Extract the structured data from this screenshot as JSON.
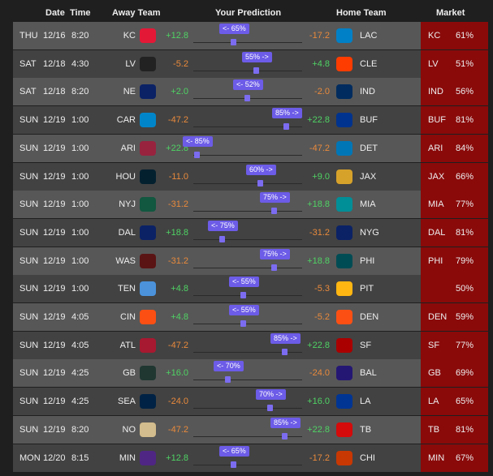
{
  "header": {
    "date": "Date",
    "time": "Time",
    "away_team": "Away Team",
    "prediction": "Your Prediction",
    "home_team": "Home Team",
    "market": "Market"
  },
  "rows": [
    {
      "day": "THU",
      "date": "12/16",
      "time": "8:20",
      "away": "KC",
      "away_score": "+12.8",
      "prediction": "<- 65%",
      "home_score": "-17.2",
      "home": "LAC",
      "market_team": "KC",
      "market_pct": "61%"
    },
    {
      "day": "SAT",
      "date": "12/18",
      "time": "4:30",
      "away": "LV",
      "away_score": "-5.2",
      "prediction": "55% ->",
      "home_score": "+4.8",
      "home": "CLE",
      "market_team": "LV",
      "market_pct": "51%"
    },
    {
      "day": "SAT",
      "date": "12/18",
      "time": "8:20",
      "away": "NE",
      "away_score": "+2.0",
      "prediction": "<- 52%",
      "home_score": "-2.0",
      "home": "IND",
      "market_team": "IND",
      "market_pct": "56%"
    },
    {
      "day": "SUN",
      "date": "12/19",
      "time": "1:00",
      "away": "CAR",
      "away_score": "-47.2",
      "prediction": "85% ->",
      "home_score": "+22.8",
      "home": "BUF",
      "market_team": "BUF",
      "market_pct": "81%"
    },
    {
      "day": "SUN",
      "date": "12/19",
      "time": "1:00",
      "away": "ARI",
      "away_score": "+22.8",
      "prediction": "<- 85%",
      "home_score": "-47.2",
      "home": "DET",
      "market_team": "ARI",
      "market_pct": "84%"
    },
    {
      "day": "SUN",
      "date": "12/19",
      "time": "1:00",
      "away": "HOU",
      "away_score": "-11.0",
      "prediction": "60% ->",
      "home_score": "+9.0",
      "home": "JAX",
      "market_team": "JAX",
      "market_pct": "66%"
    },
    {
      "day": "SUN",
      "date": "12/19",
      "time": "1:00",
      "away": "NYJ",
      "away_score": "-31.2",
      "prediction": "75% ->",
      "home_score": "+18.8",
      "home": "MIA",
      "market_team": "MIA",
      "market_pct": "77%"
    },
    {
      "day": "SUN",
      "date": "12/19",
      "time": "1:00",
      "away": "DAL",
      "away_score": "+18.8",
      "prediction": "<- 75%",
      "home_score": "-31.2",
      "home": "NYG",
      "market_team": "DAL",
      "market_pct": "81%"
    },
    {
      "day": "SUN",
      "date": "12/19",
      "time": "1:00",
      "away": "WAS",
      "away_score": "-31.2",
      "prediction": "75% ->",
      "home_score": "+18.8",
      "home": "PHI",
      "market_team": "PHI",
      "market_pct": "79%"
    },
    {
      "day": "SUN",
      "date": "12/19",
      "time": "1:00",
      "away": "TEN",
      "away_score": "+4.8",
      "prediction": "<- 55%",
      "home_score": "-5.3",
      "home": "PIT",
      "market_team": null,
      "market_pct": "50%"
    },
    {
      "day": "SUN",
      "date": "12/19",
      "time": "4:05",
      "away": "CIN",
      "away_score": "+4.8",
      "prediction": "<- 55%",
      "home_score": "-5.2",
      "home": "DEN",
      "market_team": "DEN",
      "market_pct": "59%"
    },
    {
      "day": "SUN",
      "date": "12/19",
      "time": "4:05",
      "away": "ATL",
      "away_score": "-47.2",
      "prediction": "85% ->",
      "home_score": "+22.8",
      "home": "SF",
      "market_team": "SF",
      "market_pct": "77%"
    },
    {
      "day": "SUN",
      "date": "12/19",
      "time": "4:25",
      "away": "GB",
      "away_score": "+16.0",
      "prediction": "<- 70%",
      "home_score": "-24.0",
      "home": "BAL",
      "market_team": "GB",
      "market_pct": "69%"
    },
    {
      "day": "SUN",
      "date": "12/19",
      "time": "4:25",
      "away": "SEA",
      "away_score": "-24.0",
      "prediction": "70% ->",
      "home_score": "+16.0",
      "home": "LA",
      "market_team": "LA",
      "market_pct": "65%"
    },
    {
      "day": "SUN",
      "date": "12/19",
      "time": "8:20",
      "away": "NO",
      "away_score": "-47.2",
      "prediction": "85% ->",
      "home_score": "+22.8",
      "home": "TB",
      "market_team": "TB",
      "market_pct": "81%"
    },
    {
      "day": "MON",
      "date": "12/20",
      "time": "8:15",
      "away": "MIN",
      "away_score": "+12.8",
      "prediction": "<- 65%",
      "home_score": "-17.2",
      "home": "CHI",
      "market_team": "MIN",
      "market_pct": "67%"
    }
  ]
}
